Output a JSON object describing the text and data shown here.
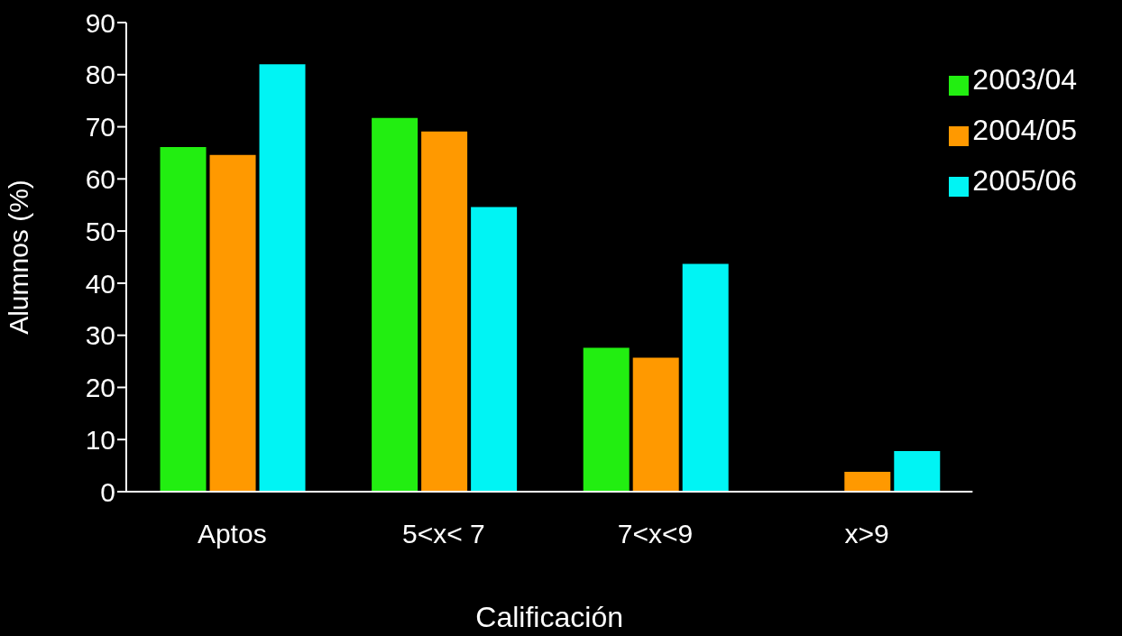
{
  "chart_data": {
    "type": "bar",
    "xlabel": "Calificación",
    "ylabel": "Alumnos (%)",
    "categories": [
      "Aptos",
      "5<x< 7",
      "7<x<9",
      "x>9"
    ],
    "series": [
      {
        "name": "2003/04",
        "color": "#22ee11",
        "values": [
          66.1,
          71.7,
          27.6,
          0
        ]
      },
      {
        "name": "2004/05",
        "color": "#ff9900",
        "values": [
          64.6,
          69.1,
          25.7,
          3.8
        ]
      },
      {
        "name": "2005/06",
        "color": "#00f4f4",
        "values": [
          82.0,
          54.6,
          43.7,
          7.8
        ]
      }
    ],
    "ylim": [
      0,
      90
    ],
    "yticks": [
      0,
      10,
      20,
      30,
      40,
      50,
      60,
      70,
      80,
      90
    ],
    "grid": false,
    "legend": "top right"
  }
}
